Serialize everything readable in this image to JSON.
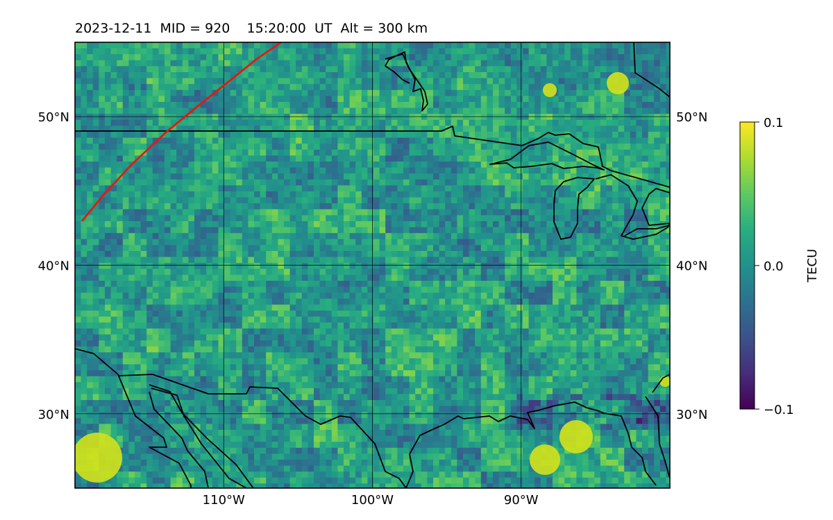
{
  "title": "2023-12-11  MID = 920    15:20:00  UT  Alt = 300 km",
  "map": {
    "lon_range": [
      -120,
      -80
    ],
    "lat_range": [
      25,
      55
    ],
    "lon_ticks": [
      {
        "value": -110,
        "label": "110°W"
      },
      {
        "value": -100,
        "label": "100°W"
      },
      {
        "value": -90,
        "label": "90°W"
      }
    ],
    "lat_ticks": [
      {
        "value": 30,
        "label": "30°N"
      },
      {
        "value": 40,
        "label": "40°N"
      },
      {
        "value": 50,
        "label": "50°N"
      }
    ],
    "grid": true,
    "track_color": "#e8180c",
    "coastline_color": "#000000"
  },
  "colorbar": {
    "label": "TECU",
    "min": -0.1,
    "max": 0.1,
    "ticks": [
      {
        "value": 0.1,
        "label": "0.1"
      },
      {
        "value": 0.0,
        "label": "0.0"
      },
      {
        "value": -0.1,
        "label": "−0.1"
      }
    ],
    "colormap": "viridis"
  }
}
